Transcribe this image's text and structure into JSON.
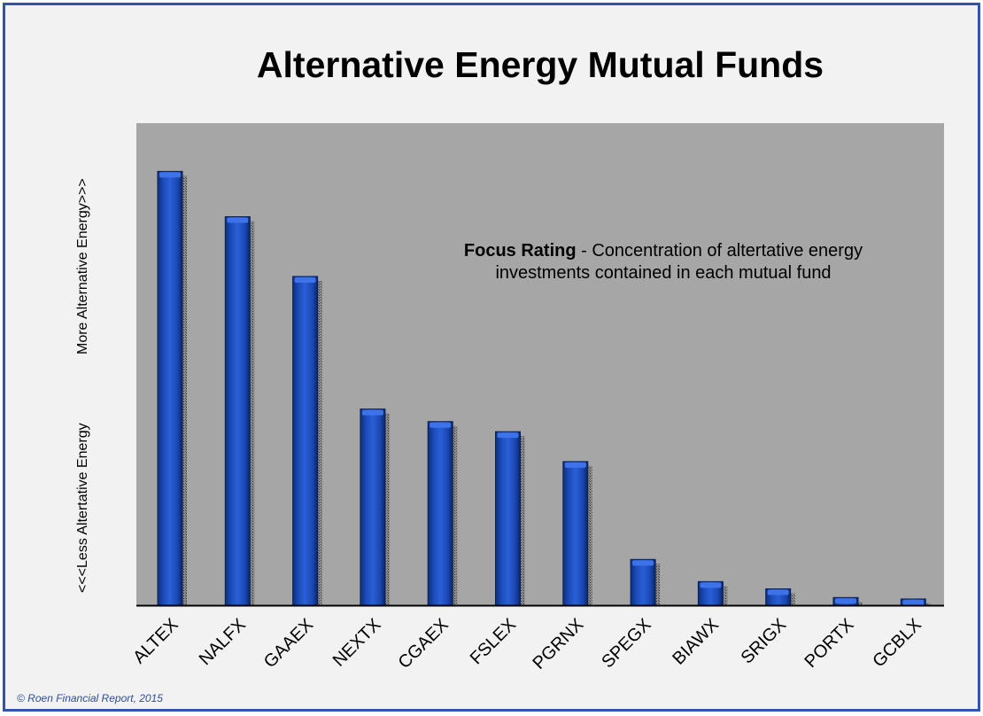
{
  "footer": "© Roen Financial Report, 2015",
  "chart_data": {
    "type": "bar",
    "title": "Alternative Energy Mutual Funds",
    "annotation": {
      "bold": "Focus Rating",
      "rest_line1": " - Concentration of altertative energy",
      "line2": "investments contained in each mutual fund"
    },
    "ylabel_low": "<<<Less Altertative Energy",
    "ylabel_high": "More Alternative Energy>>>",
    "categories": [
      "ALTEX",
      "NALFX",
      "GAAEX",
      "NEXTX",
      "CGAEX",
      "FSLEX",
      "PGRNX",
      "SPEGX",
      "BIAWX",
      "SRIGX",
      "PORTX",
      "GCBLX"
    ],
    "values": [
      90,
      80.6,
      68.2,
      40.7,
      38.1,
      36.0,
      29.8,
      9.5,
      4.9,
      3.4,
      1.6,
      1.3
    ],
    "ylim": [
      0,
      100
    ],
    "grid": false,
    "bar_color": "#1e4fc0",
    "plot_background": "#a6a6a6"
  }
}
